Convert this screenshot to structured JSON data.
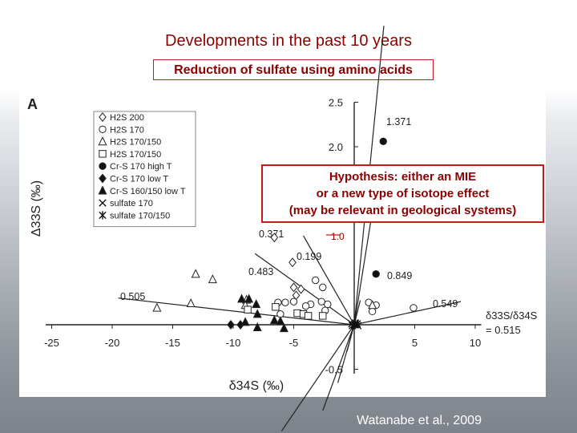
{
  "slide": {
    "title": "Developments in the past 10 years",
    "subtitle": "Reduction of sulfate using amino acids",
    "hypothesis": [
      "Hypothesis: either an MIE",
      "or a new type of isotope effect",
      "(may be relevant in geological systems)"
    ],
    "credit": "Watanabe et al., 2009",
    "accent_color": "#8b0000",
    "box_border_color": "#c41a1a"
  },
  "chart_data": {
    "type": "scatter",
    "panel_label": "A",
    "xlabel": "δ34S (‰)",
    "ylabel": "Δ33S (‰)",
    "xlim": [
      -25.5,
      10.5
    ],
    "ylim": [
      -0.55,
      2.5
    ],
    "x_ticks": [
      -25,
      -20,
      -15,
      -10,
      -5,
      5,
      10
    ],
    "x_tick_labels": [
      "-25",
      "-20",
      "-15",
      "-10",
      "-5",
      "5",
      "10"
    ],
    "y_ticks": [
      2.5,
      2.0,
      -0.5
    ],
    "y_tick_labels": [
      "2.5",
      "2.0",
      "-0.5"
    ],
    "axes_through_origin": true,
    "grid": false,
    "legend_position": "top-left",
    "series": [
      {
        "name": "H2S 200",
        "marker": "diamond-open",
        "points": [
          [
            -6.6,
            0.98
          ],
          [
            -5.1,
            0.7
          ],
          [
            -5.0,
            0.42
          ],
          [
            -4.4,
            0.4
          ],
          [
            -4.8,
            0.33
          ]
        ]
      },
      {
        "name": "H2S 170",
        "marker": "circle-open",
        "points": [
          [
            -3.2,
            0.5
          ],
          [
            -2.6,
            0.42
          ],
          [
            -5.0,
            0.26
          ],
          [
            -2.7,
            0.26
          ],
          [
            -2.2,
            0.23
          ],
          [
            -3.6,
            0.23
          ],
          [
            -4.0,
            0.21
          ],
          [
            -5.7,
            0.25
          ],
          [
            -6.3,
            0.25
          ],
          [
            -6.1,
            0.12
          ],
          [
            -2.4,
            0.16
          ],
          [
            1.2,
            0.25
          ],
          [
            1.8,
            0.22
          ],
          [
            1.5,
            0.15
          ],
          [
            4.9,
            0.19
          ]
        ]
      },
      {
        "name": "H2S 170/150",
        "marker": "triangle-open",
        "points": [
          [
            -13.1,
            0.57
          ],
          [
            -11.7,
            0.51
          ],
          [
            -16.3,
            0.19
          ],
          [
            -13.5,
            0.24
          ],
          [
            -8.9,
            0.28
          ],
          [
            -9.0,
            0.22
          ],
          [
            1.5,
            0.22
          ]
        ]
      },
      {
        "name": "H2S 170/150",
        "marker": "square-open",
        "points": [
          [
            -8.8,
            0.17
          ],
          [
            -6.5,
            0.2
          ],
          [
            -4.7,
            0.13
          ],
          [
            -4.2,
            0.12
          ],
          [
            -3.8,
            0.1
          ],
          [
            -2.6,
            0.1
          ]
        ]
      },
      {
        "name": "Cr-S 170 high T",
        "marker": "circle-filled",
        "points": [
          [
            2.4,
            2.06
          ],
          [
            1.8,
            0.57
          ]
        ]
      },
      {
        "name": "Cr-S 170 low T",
        "marker": "diamond-filled",
        "points": [
          [
            -10.2,
            0.0
          ],
          [
            -9.4,
            0.0
          ]
        ]
      },
      {
        "name": "Cr-S 160/150 low T",
        "marker": "triangle-filled",
        "points": [
          [
            -9.3,
            0.29
          ],
          [
            -8.7,
            0.29
          ],
          [
            -8.1,
            0.23
          ],
          [
            -8.0,
            0.12
          ],
          [
            -9.0,
            0.03
          ],
          [
            -8.0,
            -0.03
          ],
          [
            -6.6,
            0.05
          ],
          [
            -6.1,
            0.04
          ],
          [
            -5.8,
            -0.04
          ]
        ]
      },
      {
        "name": "sulfate 170",
        "marker": "x",
        "points": [
          [
            0.1,
            0.0
          ],
          [
            -0.2,
            0.01
          ],
          [
            0.3,
            -0.01
          ]
        ]
      },
      {
        "name": "sulfate 170/150",
        "marker": "asterisk",
        "points": [
          [
            0.0,
            0.0
          ],
          [
            0.25,
            0.01
          ],
          [
            -0.15,
            -0.01
          ],
          [
            0.1,
            0.02
          ]
        ]
      }
    ],
    "fit_lines": [
      {
        "label": "1.371",
        "slope": 1.371,
        "x_range": [
          0,
          2.45
        ]
      },
      {
        "label": "0.371",
        "slope": 0.371,
        "x_range": [
          -2.6,
          0
        ]
      },
      {
        "label": "0.199",
        "slope": 0.199,
        "x_range": [
          -6.0,
          0
        ]
      },
      {
        "label": "0.483",
        "slope": 0.483,
        "x_range": [
          -1.35,
          0
        ]
      },
      {
        "label": "0.849",
        "slope": 0.849,
        "x_range": [
          0,
          1.6
        ]
      },
      {
        "label": "0.505",
        "slope": 0.505,
        "x_range": [
          -0.6,
          0
        ]
      },
      {
        "label": "0.549",
        "slope": 0.549,
        "x_range": [
          0,
          0.5
        ]
      }
    ],
    "annotations": [
      {
        "text": "1.371"
      },
      {
        "text": "0.371"
      },
      {
        "text": "0.199"
      },
      {
        "text": "0.483"
      },
      {
        "text": "0.849"
      },
      {
        "text": "0.505"
      },
      {
        "text": "0.549"
      },
      {
        "text": "δ33S/δ34S"
      },
      {
        "text": "= 0.515"
      },
      {
        "text": "1.0"
      }
    ]
  }
}
